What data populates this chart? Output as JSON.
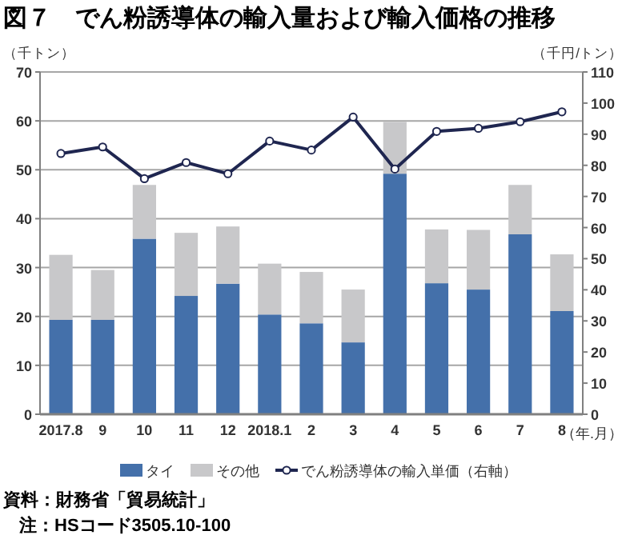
{
  "chart_data": {
    "type": "bar",
    "title": "図７　でん粉誘導体の輸入量および輸入価格の推移",
    "ylabel": "（千トン）",
    "y2label": "（千円/トン）",
    "xlabel": "（年.月）",
    "categories": [
      "2017.8",
      "9",
      "10",
      "11",
      "12",
      "2018.1",
      "2",
      "3",
      "4",
      "5",
      "6",
      "7",
      "8"
    ],
    "stacked": true,
    "series": [
      {
        "name": "タイ",
        "color": "#4470aa",
        "values": [
          19.3,
          19.3,
          35.9,
          24.2,
          26.7,
          20.4,
          18.6,
          14.7,
          49.2,
          26.8,
          25.5,
          36.8,
          21.1
        ]
      },
      {
        "name": "その他",
        "color": "#c8c8ca",
        "values": [
          13.3,
          10.2,
          11.0,
          12.9,
          11.7,
          10.4,
          10.5,
          10.8,
          10.6,
          11.0,
          12.2,
          10.1,
          11.6
        ]
      },
      {
        "name": "でん粉誘導体の輸入単価（右軸）",
        "type": "line",
        "axis": "y2",
        "color": "#1f2650",
        "marker": "circle",
        "values": [
          83.8,
          85.9,
          75.7,
          80.9,
          77.3,
          87.8,
          84.9,
          95.5,
          78.8,
          90.9,
          91.9,
          94.0,
          97.2
        ]
      }
    ],
    "ylim": [
      0,
      70
    ],
    "yticks": [
      0,
      10,
      20,
      30,
      40,
      50,
      60,
      70
    ],
    "y2lim": [
      0,
      110
    ],
    "y2ticks": [
      0,
      10,
      20,
      30,
      40,
      50,
      60,
      70,
      80,
      90,
      100,
      110
    ],
    "grid": "y",
    "legend": "bottom",
    "annotations": [
      "資料：財務省「貿易統計」",
      "注：HSコード3505.10-100"
    ]
  }
}
